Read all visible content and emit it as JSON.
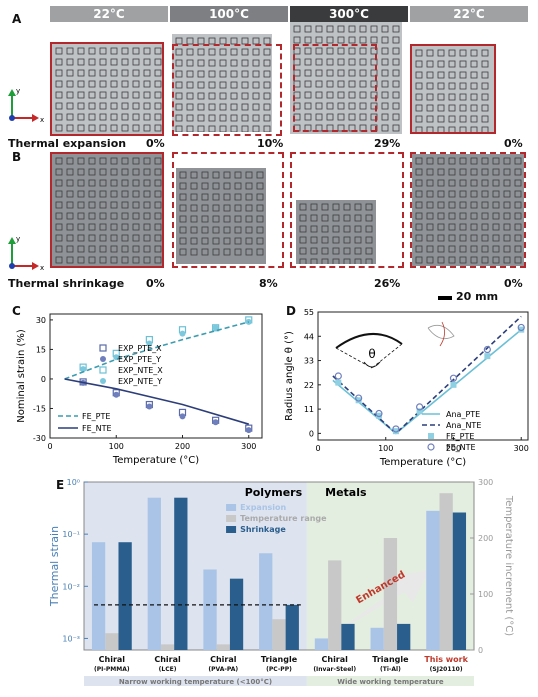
{
  "panels": {
    "a": "A",
    "b": "B",
    "c": "C",
    "d": "D",
    "e": "E"
  },
  "temperature_headers": [
    "22°C",
    "100°C",
    "300°C",
    "22°C"
  ],
  "header_colors": [
    "#9fa1a3",
    "#7d7f82",
    "#3a3b3d",
    "#9fa1a3"
  ],
  "axes_glyph": {
    "y": "y",
    "x": "x"
  },
  "row_a": {
    "label": "Thermal expansion",
    "strains": [
      "0%",
      "10%",
      "29%",
      "0%"
    ]
  },
  "row_b": {
    "label": "Thermal shrinkage",
    "strains": [
      "0%",
      "8%",
      "26%",
      "0%"
    ]
  },
  "scale_bar": "20 mm",
  "chart_data": [
    {
      "type": "scatter",
      "panel": "C",
      "xlabel": "Temperature (°C)",
      "ylabel": "Nominal strain (%)",
      "xlim": [
        0,
        320
      ],
      "ylim": [
        -30,
        33
      ],
      "xticks": [
        0,
        100,
        200,
        300
      ],
      "yticks": [
        -30,
        -15,
        0,
        15,
        30
      ],
      "series": [
        {
          "name": "EXP_PTE_X",
          "marker": "square-open",
          "color": "#5a6aa8",
          "x": [
            50,
            100,
            150,
            200,
            250,
            300
          ],
          "y": [
            -1.5,
            -7,
            -13,
            -17,
            -21,
            -25
          ]
        },
        {
          "name": "EXP_PTE_Y",
          "marker": "circle-filled",
          "color": "#6f7fbd",
          "x": [
            50,
            100,
            150,
            200,
            250,
            300
          ],
          "y": [
            -2,
            -8,
            -14,
            -19,
            -22,
            -26
          ]
        },
        {
          "name": "EXP_NTE_X",
          "marker": "square-open",
          "color": "#6cc0d6",
          "x": [
            50,
            100,
            150,
            200,
            250,
            300
          ],
          "y": [
            6,
            13,
            20,
            25,
            26,
            30
          ]
        },
        {
          "name": "EXP_NTE_Y",
          "marker": "circle-filled",
          "color": "#7cc8dc",
          "x": [
            50,
            100,
            150,
            200,
            250,
            300
          ],
          "y": [
            5,
            11,
            18,
            23,
            26,
            29
          ]
        },
        {
          "name": "FE_PTE",
          "line": "dashed",
          "color": "#3a9cb0",
          "x": [
            22,
            100,
            200,
            300
          ],
          "y": [
            0,
            10,
            20,
            29
          ]
        },
        {
          "name": "FE_NTE",
          "line": "solid",
          "color": "#2c3e7a",
          "x": [
            22,
            100,
            200,
            300
          ],
          "y": [
            0,
            -5,
            -13,
            -23
          ]
        }
      ]
    },
    {
      "type": "line",
      "panel": "D",
      "xlabel": "Temperature (°C)",
      "ylabel": "Radius angle θ (°)",
      "xlim": [
        0,
        310
      ],
      "ylim": [
        -3,
        55
      ],
      "xticks": [
        0,
        100,
        200,
        300
      ],
      "yticks": [
        0,
        11,
        22,
        33,
        44,
        55
      ],
      "inset_symbol": "θ",
      "series": [
        {
          "name": "Ana_PTE",
          "line": "solid",
          "color": "#6cc0d6",
          "x": [
            22,
            115,
            300
          ],
          "y": [
            24,
            0,
            47
          ]
        },
        {
          "name": "Ana_NTE",
          "line": "dashed",
          "color": "#2c3e7a",
          "x": [
            22,
            115,
            300
          ],
          "y": [
            26,
            0,
            53
          ]
        },
        {
          "name": "FE_PTE",
          "marker": "square-filled",
          "color": "#8fd0e2",
          "x": [
            30,
            60,
            90,
            115,
            150,
            200,
            250,
            300
          ],
          "y": [
            23,
            15,
            8,
            1,
            10,
            22,
            35,
            47
          ]
        },
        {
          "name": "FE_NTE",
          "marker": "circle-open",
          "color": "#6f7fbd",
          "x": [
            30,
            60,
            90,
            115,
            150,
            200,
            250,
            300
          ],
          "y": [
            26,
            16,
            9,
            2,
            12,
            25,
            38,
            48
          ]
        }
      ]
    },
    {
      "type": "bar",
      "panel": "E",
      "categories": [
        {
          "name": "Chiral",
          "sub": "(PI-PMMA)"
        },
        {
          "name": "Chiral",
          "sub": "(LCE)"
        },
        {
          "name": "Chiral",
          "sub": "(PVA-PA)"
        },
        {
          "name": "Triangle",
          "sub": "(PC-PP)"
        },
        {
          "name": "Chiral",
          "sub": "(Invar-Steel)"
        },
        {
          "name": "Triangle",
          "sub": "(Ti-Al)"
        },
        {
          "name": "This work",
          "sub": "(SJ20110)"
        }
      ],
      "series": [
        {
          "name": "Expansion",
          "color": "#a9c4e6",
          "axis": "left",
          "values": [
            0.07,
            0.5,
            0.021,
            0.043,
            0.001,
            0.0016,
            0.28
          ]
        },
        {
          "name": "Temperature range",
          "color": "#c8c8c8",
          "axis": "right",
          "values": [
            30,
            10,
            10,
            55,
            160,
            200,
            280
          ]
        },
        {
          "name": "Shrinkage",
          "color": "#2a5e8c",
          "axis": "left",
          "values": [
            0.07,
            0.5,
            0.014,
            0.0044,
            0.0019,
            0.0019,
            0.26
          ]
        }
      ],
      "ylabel_left": "Thermal strain",
      "ylabel_right": "Temperature increment (°C)",
      "ylim_left": [
        0.0006,
        1
      ],
      "ylim_right": [
        0,
        300
      ],
      "left_ticks": [
        "10⁻³",
        "10⁻²",
        "10⁻¹",
        "10⁰"
      ],
      "left_tick_values": [
        0.001,
        0.01,
        0.1,
        1
      ],
      "right_ticks": [
        0,
        100,
        200,
        300
      ],
      "reference_line_value": 0.0044,
      "group_labels": {
        "polymers": "Polymers",
        "metals": "Metals"
      },
      "range_labels": {
        "narrow": "Narrow working temperature (<100°C)",
        "wide": "Wide working temperature"
      },
      "annotation": "Enhanced"
    }
  ]
}
